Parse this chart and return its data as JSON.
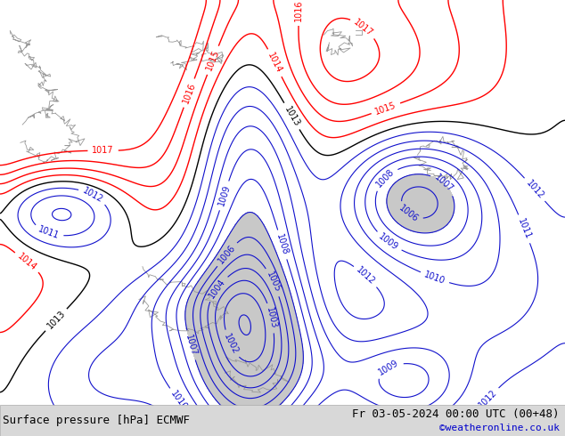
{
  "title_left": "Surface pressure [hPa] ECMWF",
  "title_right": "Fr 03-05-2024 00:00 UTC (00+48)",
  "credit": "©weatheronline.co.uk",
  "background_color": "#99cc66",
  "low_fill_color": "#c8c8c8",
  "fig_width": 6.34,
  "fig_height": 4.9,
  "dpi": 100,
  "bottom_bar_color": "#d8d8d8",
  "title_fontsize": 9,
  "credit_fontsize": 8,
  "credit_color": "#0000cc",
  "label_fontsize": 7
}
